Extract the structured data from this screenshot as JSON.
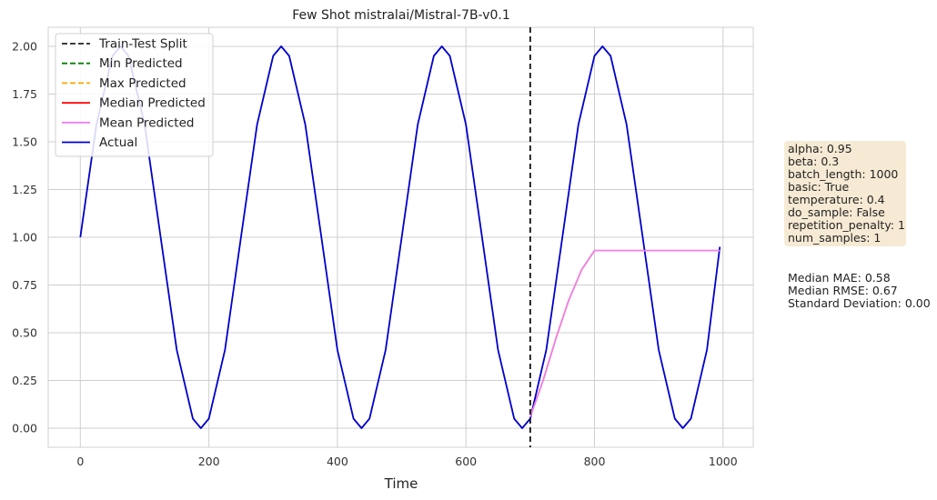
{
  "chart_data": {
    "type": "line",
    "title": "Few Shot mistralai/Mistral-7B-v0.1",
    "xlabel": "Time",
    "ylabel": "",
    "xlim": [
      -50,
      1047
    ],
    "ylim": [
      -0.1,
      2.1
    ],
    "x_ticks": [
      "0",
      "200",
      "400",
      "600",
      "800",
      "1000"
    ],
    "y_ticks": [
      "0.00",
      "0.25",
      "0.50",
      "0.75",
      "1.00",
      "1.25",
      "1.50",
      "1.75",
      "2.00"
    ],
    "grid": true,
    "legend_position": "top-left",
    "legend": [
      {
        "label": "Train-Test Split",
        "color": "#222222",
        "style": "dashed"
      },
      {
        "label": "Min Predicted",
        "color": "#008000",
        "style": "dashed"
      },
      {
        "label": "Max Predicted",
        "color": "#ffa500",
        "style": "dashed"
      },
      {
        "label": "Median Predicted",
        "color": "#ff0000",
        "style": "solid"
      },
      {
        "label": "Mean Predicted",
        "color": "#ee82ee",
        "style": "solid"
      },
      {
        "label": "Actual",
        "color": "#0000cd",
        "style": "solid"
      }
    ],
    "split_x": 700,
    "series": [
      {
        "name": "Actual",
        "color": "#0000cd",
        "x": [
          0,
          25,
          50,
          62.5,
          75,
          100,
          125,
          150,
          175,
          187.5,
          200,
          225,
          250,
          275,
          300,
          312.5,
          325,
          350,
          375,
          400,
          425,
          437.5,
          450,
          475,
          500,
          525,
          550,
          562.5,
          575,
          600,
          625,
          650,
          675,
          687.5,
          700,
          725,
          750,
          775,
          800,
          812.5,
          825,
          850,
          875,
          900,
          925,
          937.5,
          950,
          975,
          995
        ],
        "y": [
          1.0,
          1.59,
          1.95,
          2.0,
          1.95,
          1.59,
          1.0,
          0.41,
          0.05,
          0.0,
          0.05,
          0.41,
          1.0,
          1.59,
          1.95,
          2.0,
          1.95,
          1.59,
          1.0,
          0.41,
          0.05,
          0.0,
          0.05,
          0.41,
          1.0,
          1.59,
          1.95,
          2.0,
          1.95,
          1.59,
          1.0,
          0.41,
          0.05,
          0.0,
          0.05,
          0.41,
          1.0,
          1.59,
          1.95,
          2.0,
          1.95,
          1.59,
          1.0,
          0.41,
          0.05,
          0.0,
          0.05,
          0.41,
          0.95
        ]
      },
      {
        "name": "Median Predicted",
        "color": "#ff0000",
        "x": [
          700,
          720,
          740,
          760,
          780,
          800,
          820,
          850,
          900,
          950,
          995
        ],
        "y": [
          0.06,
          0.25,
          0.47,
          0.67,
          0.83,
          0.93,
          0.93,
          0.93,
          0.93,
          0.93,
          0.93
        ]
      },
      {
        "name": "Mean Predicted",
        "color": "#ee82ee",
        "x": [
          700,
          720,
          740,
          760,
          780,
          800,
          820,
          850,
          900,
          950,
          995
        ],
        "y": [
          0.06,
          0.25,
          0.47,
          0.67,
          0.83,
          0.93,
          0.93,
          0.93,
          0.93,
          0.93,
          0.93
        ]
      }
    ]
  },
  "params": [
    "alpha: 0.95",
    "beta: 0.3",
    "batch_length: 1000",
    "basic: True",
    "temperature: 0.4",
    "do_sample: False",
    "repetition_penalty: 1",
    "num_samples: 1"
  ],
  "metrics": [
    "Median MAE: 0.58",
    "Median RMSE: 0.67",
    "Standard Deviation: 0.00"
  ]
}
